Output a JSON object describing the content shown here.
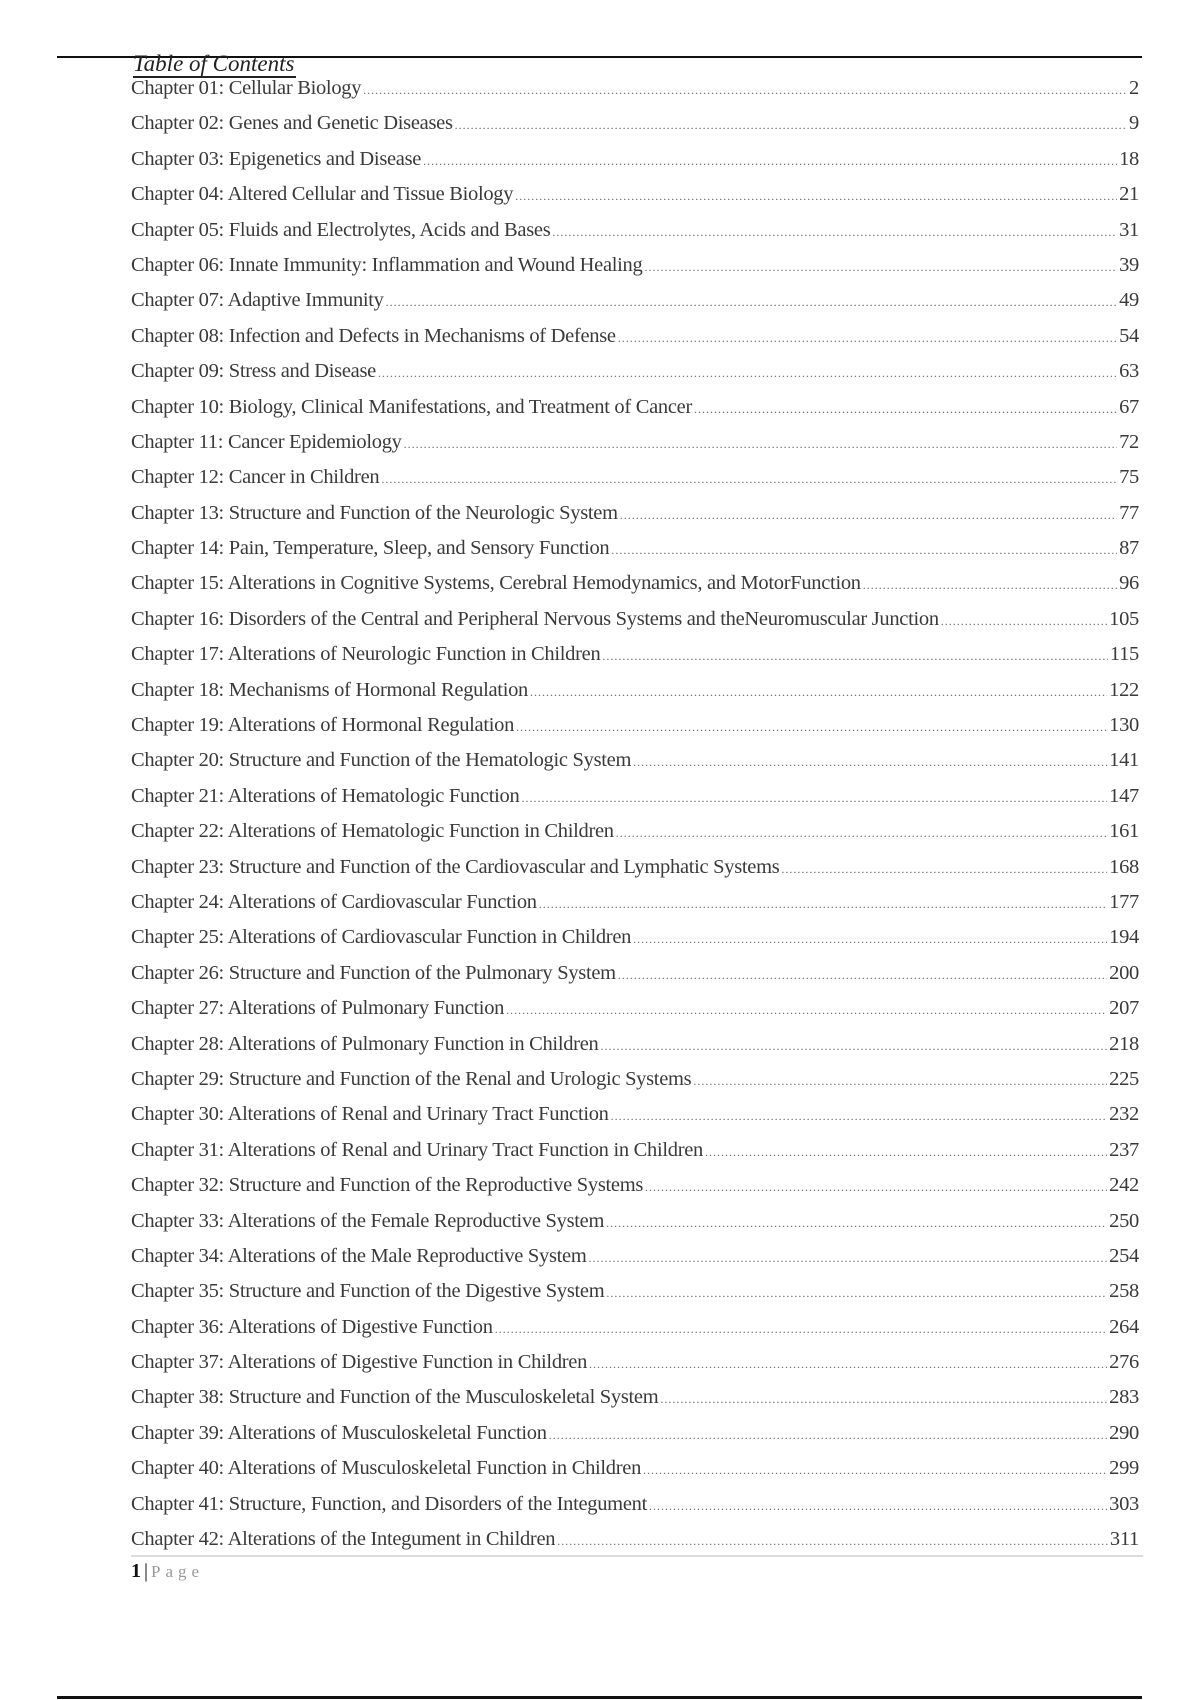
{
  "title": "Table of Contents",
  "entries": [
    {
      "label": "Chapter 01: Cellular Biology",
      "page": "2"
    },
    {
      "label": "Chapter 02: Genes and Genetic Diseases",
      "page": "9"
    },
    {
      "label": "Chapter 03: Epigenetics and Disease",
      "page": "18"
    },
    {
      "label": "Chapter 04: Altered Cellular and Tissue Biology",
      "page": "21"
    },
    {
      "label": "Chapter 05: Fluids and Electrolytes, Acids and Bases",
      "page": "31"
    },
    {
      "label": "Chapter 06: Innate Immunity: Inflammation and Wound Healing",
      "page": "39"
    },
    {
      "label": "Chapter 07: Adaptive Immunity",
      "page": "49"
    },
    {
      "label": "Chapter 08: Infection and Defects in Mechanisms of Defense",
      "page": "54"
    },
    {
      "label": "Chapter 09: Stress and Disease",
      "page": "63"
    },
    {
      "label": "Chapter 10: Biology, Clinical Manifestations, and Treatment of Cancer",
      "page": "67"
    },
    {
      "label": "Chapter 11: Cancer Epidemiology",
      "page": "72"
    },
    {
      "label": "Chapter 12: Cancer in Children",
      "page": "75"
    },
    {
      "label": "Chapter 13: Structure and Function of the Neurologic System",
      "page": "77"
    },
    {
      "label": "Chapter 14: Pain, Temperature, Sleep, and Sensory Function",
      "page": "87"
    },
    {
      "label": "Chapter 15: Alterations in Cognitive Systems, Cerebral Hemodynamics, and MotorFunction",
      "page": "96"
    },
    {
      "label": "Chapter 16: Disorders of the Central and Peripheral Nervous Systems and theNeuromuscular Junction",
      "page": "105"
    },
    {
      "label": "Chapter 17: Alterations of Neurologic Function in Children",
      "page": "115"
    },
    {
      "label": "Chapter 18: Mechanisms of Hormonal Regulation",
      "page": "122"
    },
    {
      "label": "Chapter 19: Alterations of Hormonal Regulation",
      "page": "130"
    },
    {
      "label": "Chapter 20: Structure and Function of the Hematologic System",
      "page": "141"
    },
    {
      "label": "Chapter 21: Alterations of Hematologic Function",
      "page": "147"
    },
    {
      "label": "Chapter 22: Alterations of Hematologic Function in Children",
      "page": "161"
    },
    {
      "label": "Chapter 23: Structure and Function of the Cardiovascular and Lymphatic Systems",
      "page": "168"
    },
    {
      "label": "Chapter 24: Alterations of Cardiovascular Function",
      "page": "177"
    },
    {
      "label": "Chapter 25: Alterations of Cardiovascular Function in Children",
      "page": "194"
    },
    {
      "label": "Chapter 26: Structure and Function of the Pulmonary System",
      "page": "200"
    },
    {
      "label": "Chapter 27: Alterations of Pulmonary Function",
      "page": "207"
    },
    {
      "label": "Chapter 28: Alterations of Pulmonary Function in Children",
      "page": "218"
    },
    {
      "label": "Chapter 29: Structure and Function of the Renal and Urologic Systems",
      "page": "225"
    },
    {
      "label": "Chapter 30: Alterations of Renal and Urinary Tract Function",
      "page": "232"
    },
    {
      "label": "Chapter 31: Alterations of Renal and Urinary Tract Function in Children",
      "page": "237"
    },
    {
      "label": "Chapter 32: Structure and Function of the Reproductive Systems",
      "page": "242"
    },
    {
      "label": "Chapter 33: Alterations of the Female Reproductive System",
      "page": "250"
    },
    {
      "label": "Chapter 34: Alterations of the Male Reproductive System",
      "page": "254"
    },
    {
      "label": "Chapter 35: Structure and Function of the Digestive System",
      "page": "258"
    },
    {
      "label": "Chapter 36: Alterations of Digestive Function",
      "page": "264"
    },
    {
      "label": "Chapter 37: Alterations of Digestive Function in Children",
      "page": "276"
    },
    {
      "label": "Chapter 38: Structure and Function of the Musculoskeletal System",
      "page": "283"
    },
    {
      "label": "Chapter 39: Alterations of Musculoskeletal Function",
      "page": "290"
    },
    {
      "label": "Chapter 40: Alterations of Musculoskeletal Function in Children",
      "page": "299"
    },
    {
      "label": "Chapter 41: Structure, Function, and Disorders of the Integument",
      "page": "303"
    },
    {
      "label": "Chapter 42: Alterations of the Integument in Children",
      "page": "311"
    }
  ],
  "footer": {
    "page_number": "1",
    "separator": "|",
    "page_word": "Page"
  }
}
